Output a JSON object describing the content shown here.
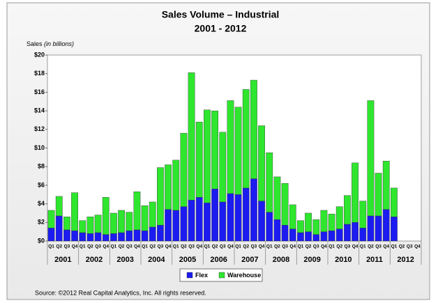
{
  "chart_data": {
    "type": "stacked_bar",
    "title": "Sales Volume – Industrial",
    "subtitle": "2001 - 2012",
    "y_axis_label": "Sales",
    "y_axis_unit": "(in billions)",
    "source": "Source:  ©2012 Real Capital Analytics, Inc.  All rights reserved.",
    "categories": [
      "Q1",
      "Q2",
      "Q3",
      "Q4",
      "Q1",
      "Q2",
      "Q3",
      "Q4",
      "Q1",
      "Q2",
      "Q3",
      "Q4",
      "Q1",
      "Q2",
      "Q3",
      "Q4",
      "Q1",
      "Q2",
      "Q3",
      "Q4",
      "Q1",
      "Q2",
      "Q3",
      "Q4",
      "Q1",
      "Q2",
      "Q3",
      "Q4",
      "Q1",
      "Q2",
      "Q3",
      "Q4",
      "Q1",
      "Q2",
      "Q3",
      "Q4",
      "Q1",
      "Q2",
      "Q3",
      "Q4",
      "Q1",
      "Q2",
      "Q3",
      "Q4",
      "Q1",
      "Q2",
      "Q3",
      "Q4"
    ],
    "years": [
      "2001",
      "2002",
      "2003",
      "2004",
      "2005",
      "2006",
      "2007",
      "2008",
      "2009",
      "2010",
      "2011",
      "2012"
    ],
    "series": [
      {
        "name": "Flex",
        "color": "#1c1cf0",
        "values": [
          1.4,
          2.7,
          1.2,
          1.1,
          0.9,
          0.8,
          0.9,
          0.7,
          0.8,
          0.9,
          1.1,
          1.2,
          1.1,
          1.5,
          1.7,
          3.4,
          3.3,
          3.7,
          4.4,
          4.7,
          4.1,
          5.6,
          4.2,
          5.1,
          5.0,
          5.7,
          6.7,
          4.3,
          3.1,
          2.3,
          1.7,
          1.3,
          0.9,
          1.0,
          0.7,
          1.0,
          1.1,
          1.3,
          1.8,
          2.0,
          1.4,
          2.7,
          2.7,
          3.4,
          2.6,
          null,
          null,
          null
        ]
      },
      {
        "name": "Warehouse",
        "color": "#2ee62e",
        "values": [
          1.9,
          2.1,
          1.4,
          4.1,
          1.3,
          1.8,
          1.9,
          4.0,
          2.2,
          2.4,
          2.0,
          4.1,
          2.7,
          2.7,
          6.2,
          4.8,
          5.4,
          7.9,
          13.7,
          8.1,
          10.0,
          8.4,
          7.5,
          10.0,
          9.4,
          10.6,
          10.6,
          8.1,
          6.4,
          4.6,
          4.5,
          2.6,
          1.3,
          2.0,
          1.6,
          2.3,
          1.8,
          2.4,
          3.1,
          6.4,
          2.9,
          12.4,
          4.6,
          5.2,
          3.1,
          null,
          null,
          null
        ]
      }
    ],
    "ylim": [
      0,
      20
    ],
    "yticks": [
      {
        "value": 0,
        "label": "$0"
      },
      {
        "value": 2,
        "label": "$2"
      },
      {
        "value": 4,
        "label": "$4"
      },
      {
        "value": 6,
        "label": "$6"
      },
      {
        "value": 8,
        "label": "$8"
      },
      {
        "value": 10,
        "label": "$10"
      },
      {
        "value": 12,
        "label": "$12"
      },
      {
        "value": 14,
        "label": "$14"
      },
      {
        "value": 16,
        "label": "$16"
      },
      {
        "value": 18,
        "label": "$18"
      },
      {
        "value": 20,
        "label": "$20"
      }
    ],
    "grid": false,
    "legend": "bottom"
  }
}
